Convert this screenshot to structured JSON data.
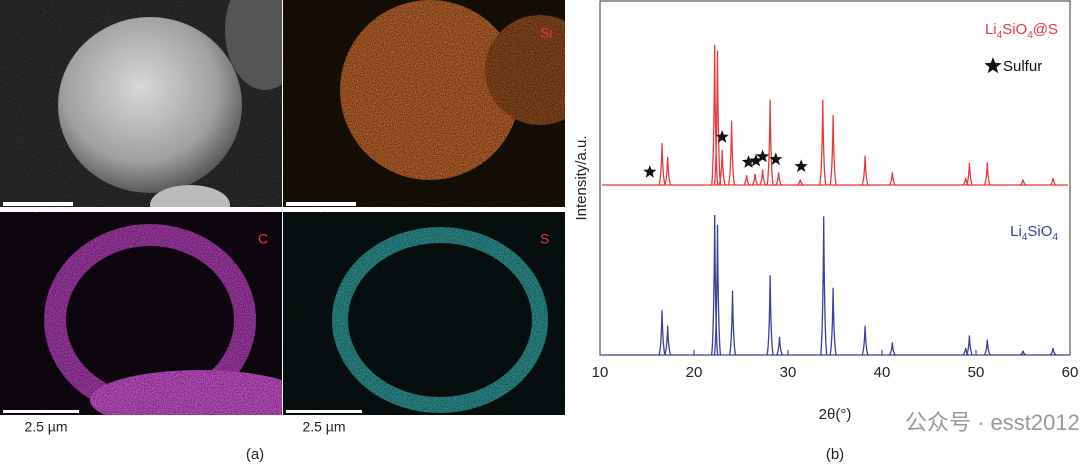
{
  "panel_a": {
    "label": "(a)",
    "element_labels": [
      "Si",
      "C",
      "S"
    ],
    "scale_bars": [
      "2.5µm",
      "2.5µm",
      "2.5 µm",
      "2.5 µm"
    ]
  },
  "chart_data": {
    "type": "spectrum",
    "panel_label": "(b)",
    "xlabel": "2θ(°)",
    "ylabel": "Intensity/a.u.",
    "xlim": [
      10,
      60
    ],
    "xticks": [
      10,
      20,
      30,
      40,
      50,
      60
    ],
    "ylim": [
      0,
      100
    ],
    "series": [
      {
        "name": "Li4SiO4@S",
        "color": "#e8383d",
        "x": [
          16.6,
          17.2,
          22.2,
          22.5,
          23.0,
          24.0,
          25.6,
          26.5,
          27.3,
          28.1,
          29.0,
          31.3,
          33.7,
          34.8,
          38.2,
          41.1,
          48.9,
          49.3,
          51.2,
          55.0,
          58.2
        ],
        "values": [
          30,
          20,
          100,
          96,
          25,
          46,
          7,
          8,
          11,
          61,
          9,
          4,
          61,
          50,
          21,
          9,
          5,
          16,
          16,
          4,
          5
        ]
      },
      {
        "name": "Li4SiO4",
        "color": "#3a3f9b",
        "x": [
          16.6,
          17.2,
          22.2,
          22.5,
          24.1,
          28.1,
          29.1,
          33.8,
          34.8,
          38.2,
          41.1,
          48.9,
          49.3,
          51.2,
          55.0,
          58.2
        ],
        "values": [
          32,
          21,
          100,
          93,
          46,
          57,
          13,
          99,
          48,
          21,
          9,
          5,
          14,
          11,
          3,
          5
        ]
      }
    ],
    "marker_legend": "Sulfur",
    "sulfur_peaks": [
      15.3,
      23.0,
      25.8,
      26.6,
      27.3,
      28.7,
      31.4
    ]
  },
  "watermark": "公众号 · esst2012"
}
